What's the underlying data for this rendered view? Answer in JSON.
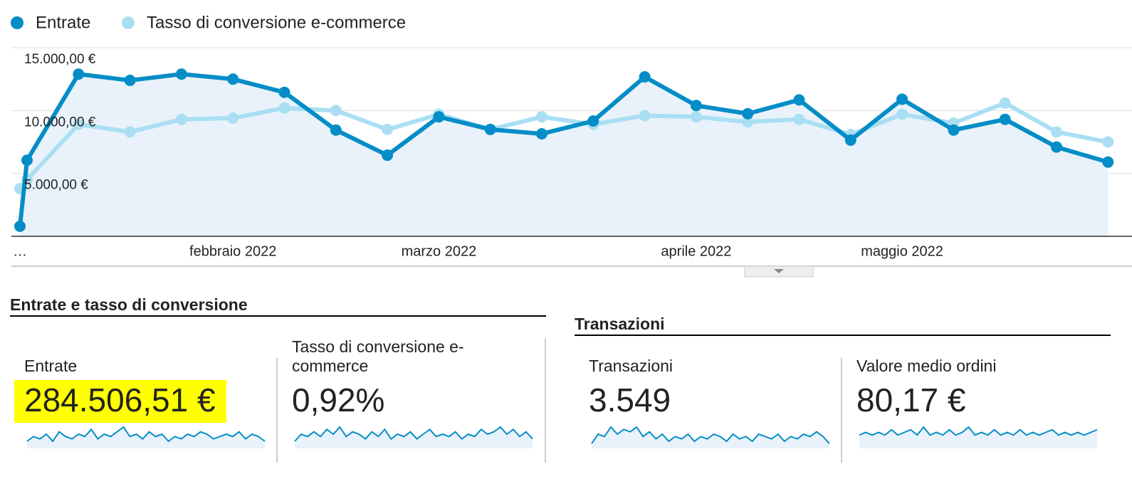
{
  "chart_data": {
    "type": "line",
    "categories": [
      "…",
      null,
      null,
      null,
      null,
      "febbraio 2022",
      null,
      null,
      null,
      "marzo 2022",
      null,
      null,
      null,
      null,
      "aprile 2022",
      null,
      null,
      null,
      "maggio 2022",
      null,
      null,
      null,
      null
    ],
    "series": [
      {
        "name": "Entrate",
        "color": "#058dc7",
        "values": [
          800,
          6050,
          12900,
          12400,
          12900,
          12500,
          11450,
          8450,
          6450,
          9500,
          8500,
          8150,
          9170,
          12680,
          10400,
          9750,
          10850,
          7650,
          10900,
          8450,
          9300,
          7100,
          5900
        ]
      },
      {
        "name": "Tasso di conversione e-commerce",
        "color": "#aadff3",
        "axis": "y2",
        "values": [
          0.38,
          0.45,
          0.89,
          0.83,
          0.93,
          0.94,
          1.02,
          1.0,
          0.85,
          0.97,
          0.85,
          0.95,
          0.89,
          0.96,
          0.95,
          0.91,
          0.93,
          0.81,
          0.97,
          0.9,
          1.06,
          0.83,
          0.75
        ]
      }
    ],
    "ylim": [
      0,
      15000
    ],
    "yticks": [
      {
        "value": 5000,
        "label": "5.000,00 €"
      },
      {
        "value": 10000,
        "label": "10.000,00 €"
      },
      {
        "value": 15000,
        "label": "15.000,00 €"
      }
    ],
    "y2lim": [
      0,
      1.5
    ],
    "grid": true,
    "area": true
  },
  "sections": [
    {
      "title": "Entrate e tasso di conversione"
    },
    {
      "title": "Transazioni"
    }
  ],
  "scorecards": [
    {
      "label": "Entrate",
      "value": "284.506,51 €",
      "highlight": true,
      "sparkline": [
        3,
        5,
        4,
        6,
        3,
        7,
        5,
        4,
        6,
        5,
        8,
        4,
        6,
        5,
        7,
        9,
        5,
        6,
        4,
        7,
        5,
        6,
        3,
        5,
        4,
        6,
        5,
        7,
        6,
        4,
        5,
        6,
        5,
        7,
        4,
        6,
        5,
        3
      ]
    },
    {
      "label": "Tasso di conversione e-commerce",
      "value": "0,92%",
      "highlight": false,
      "sparkline": [
        3,
        6,
        5,
        7,
        5,
        8,
        6,
        9,
        5,
        7,
        6,
        4,
        7,
        5,
        8,
        4,
        6,
        5,
        7,
        4,
        6,
        8,
        5,
        6,
        5,
        7,
        4,
        6,
        5,
        8,
        6,
        7,
        9,
        6,
        8,
        5,
        7,
        4
      ]
    },
    {
      "label": "Transazioni",
      "value": "3.549",
      "highlight": false,
      "sparkline": [
        2,
        6,
        5,
        9,
        6,
        8,
        7,
        9,
        5,
        7,
        4,
        6,
        3,
        5,
        4,
        6,
        3,
        5,
        4,
        6,
        5,
        3,
        6,
        4,
        5,
        3,
        6,
        5,
        4,
        6,
        3,
        5,
        4,
        6,
        5,
        7,
        5,
        2
      ]
    },
    {
      "label": "Valore medio ordini",
      "value": "80,17 €",
      "highlight": false,
      "sparkline": [
        5,
        6,
        5,
        6,
        5,
        7,
        5,
        6,
        7,
        5,
        8,
        5,
        6,
        5,
        7,
        5,
        6,
        8,
        5,
        6,
        5,
        7,
        5,
        6,
        5,
        7,
        5,
        6,
        5,
        6,
        7,
        5,
        6,
        5,
        6,
        5,
        6,
        7
      ]
    }
  ]
}
